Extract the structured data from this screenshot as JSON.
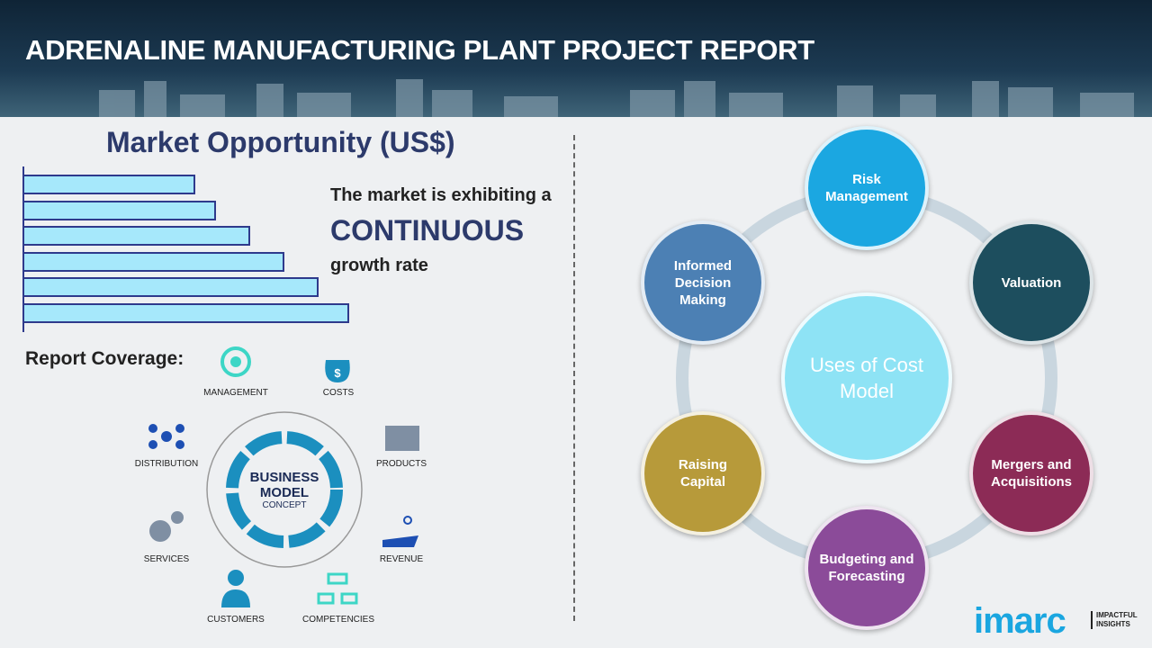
{
  "header": {
    "title": "ADRENALINE MANUFACTURING PLANT PROJECT REPORT"
  },
  "market": {
    "title": "Market Opportunity (US$)",
    "line1": "The market is exhibiting a",
    "line2": "CONTINUOUS",
    "line3": "growth rate",
    "bar_levels": [
      0.5,
      0.56,
      0.66,
      0.76,
      0.86,
      0.95
    ],
    "bar_color": "#a6e8fb"
  },
  "coverage": {
    "title": "Report Coverage:",
    "center_title": "BUSINESS\nMODEL",
    "center_sub": "CONCEPT",
    "items": [
      "MANAGEMENT",
      "COSTS",
      "PRODUCTS",
      "REVENUE",
      "COMPETENCIES",
      "CUSTOMERS",
      "SERVICES",
      "DISTRIBUTION"
    ]
  },
  "uses": {
    "center": "Uses of Cost Model",
    "items": [
      {
        "label": "Risk Management",
        "color": "#1ba7e1"
      },
      {
        "label": "Valuation",
        "color": "#1d4e5e"
      },
      {
        "label": "Mergers and Acquisitions",
        "color": "#8c2b56"
      },
      {
        "label": "Budgeting and Forecasting",
        "color": "#8b4b99"
      },
      {
        "label": "Raising Capital",
        "color": "#b79a3a"
      },
      {
        "label": "Informed Decision Making",
        "color": "#4c80b4"
      }
    ]
  },
  "logo": {
    "name": "imarc",
    "tagline": "IMPACTFUL INSIGHTS"
  }
}
